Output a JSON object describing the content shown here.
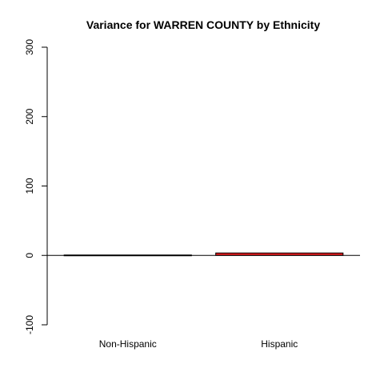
{
  "chart_data": {
    "type": "bar",
    "title": "Variance for WARREN COUNTY by Ethnicity",
    "xlabel": "",
    "ylabel": "",
    "categories": [
      "Non-Hispanic",
      "Hispanic"
    ],
    "values": [
      0.6,
      3.5
    ],
    "ylim": [
      -100,
      300
    ],
    "yticks": [
      -100,
      0,
      100,
      200,
      300
    ],
    "bar_colors": [
      "#000000",
      "#e41a1c"
    ],
    "bar_border": "#000000",
    "grid": false,
    "legend": "none"
  }
}
